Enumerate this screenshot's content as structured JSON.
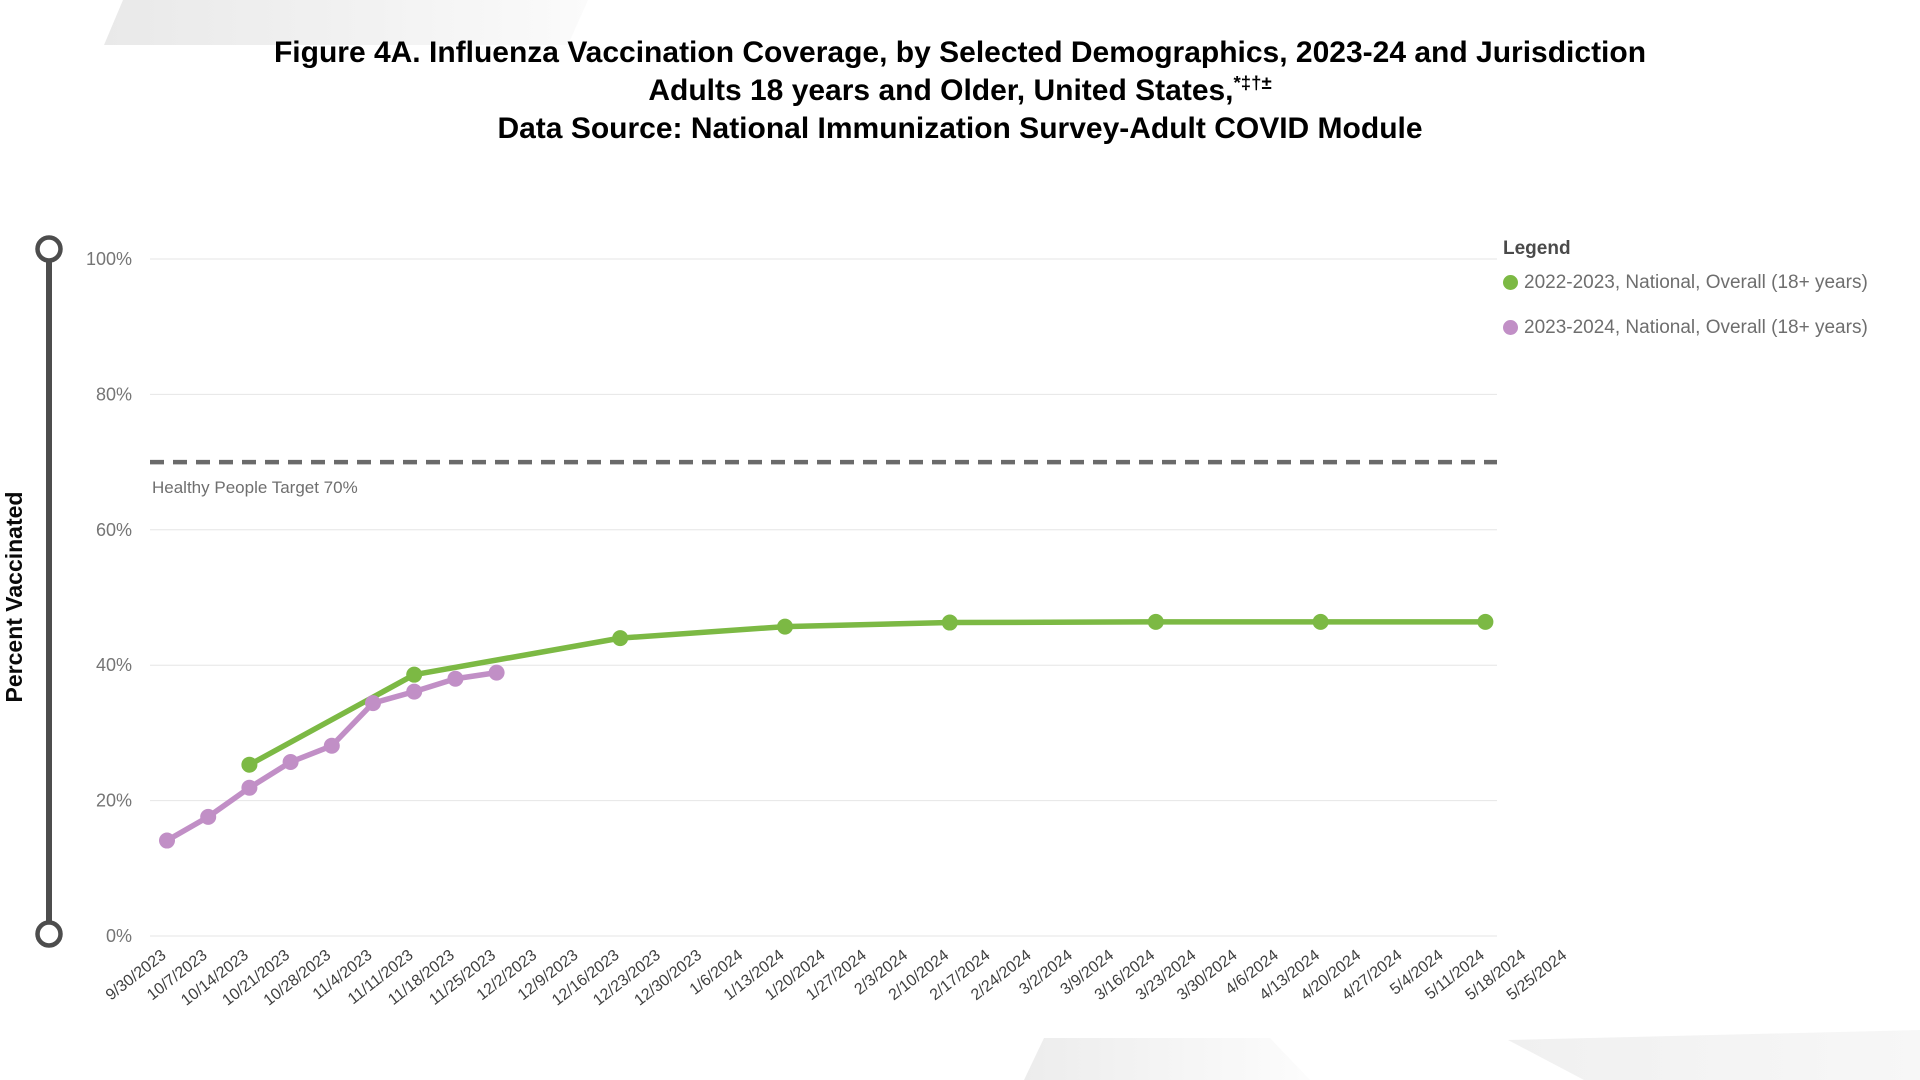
{
  "header": {
    "title_line1": "Figure 4A. Influenza Vaccination Coverage, by Selected Demographics, 2023-24 and Jurisdiction",
    "title_line2": "Adults 18 years and Older, United States,",
    "title_line2_superscript": "*‡†±",
    "title_line3": "Data Source: National Immunization Survey-Adult COVID Module"
  },
  "legend": {
    "title": "Legend"
  },
  "chart_data": {
    "type": "line",
    "grid": true,
    "legend_position": "top-right",
    "y_axis": {
      "title": "Percent Vaccinated",
      "min": 0,
      "max": 100,
      "tick_values": [
        0,
        20,
        40,
        60,
        80,
        100
      ],
      "tick_labels": [
        "0%",
        "20%",
        "40%",
        "60%",
        "80%",
        "100%"
      ]
    },
    "x_axis": {
      "categories": [
        "9/30/2023",
        "10/7/2023",
        "10/14/2023",
        "10/21/2023",
        "10/28/2023",
        "11/4/2023",
        "11/11/2023",
        "11/18/2023",
        "11/25/2023",
        "12/2/2023",
        "12/9/2023",
        "12/16/2023",
        "12/23/2023",
        "12/30/2023",
        "1/6/2024",
        "1/13/2024",
        "1/20/2024",
        "1/27/2024",
        "2/3/2024",
        "2/10/2024",
        "2/17/2024",
        "2/24/2024",
        "3/2/2024",
        "3/9/2024",
        "3/16/2024",
        "3/23/2024",
        "3/30/2024",
        "4/6/2024",
        "4/13/2024",
        "4/20/2024",
        "4/27/2024",
        "5/4/2024",
        "5/11/2024",
        "5/18/2024",
        "5/25/2024"
      ]
    },
    "target_line": {
      "value": 70,
      "label": "Healthy People Target 70%"
    },
    "series": [
      {
        "name": "2022-2023, National, Overall (18+ years)",
        "color": "#7CB944",
        "x": [
          "10/14/2023",
          "11/11/2023",
          "12/16/2023",
          "1/13/2024",
          "2/10/2024",
          "3/16/2024",
          "4/13/2024",
          "5/11/2024"
        ],
        "y": [
          25.3,
          38.6,
          44.0,
          45.7,
          46.3,
          46.4,
          46.4,
          46.4
        ]
      },
      {
        "name": "2023-2024, National, Overall (18+ years)",
        "color": "#C18FC6",
        "x": [
          "9/30/2023",
          "10/7/2023",
          "10/14/2023",
          "10/21/2023",
          "10/28/2023",
          "11/4/2023",
          "11/11/2023",
          "11/18/2023",
          "11/25/2023"
        ],
        "y": [
          14.1,
          17.6,
          21.9,
          25.7,
          28.1,
          34.4,
          36.1,
          38.0,
          38.9
        ]
      }
    ]
  }
}
